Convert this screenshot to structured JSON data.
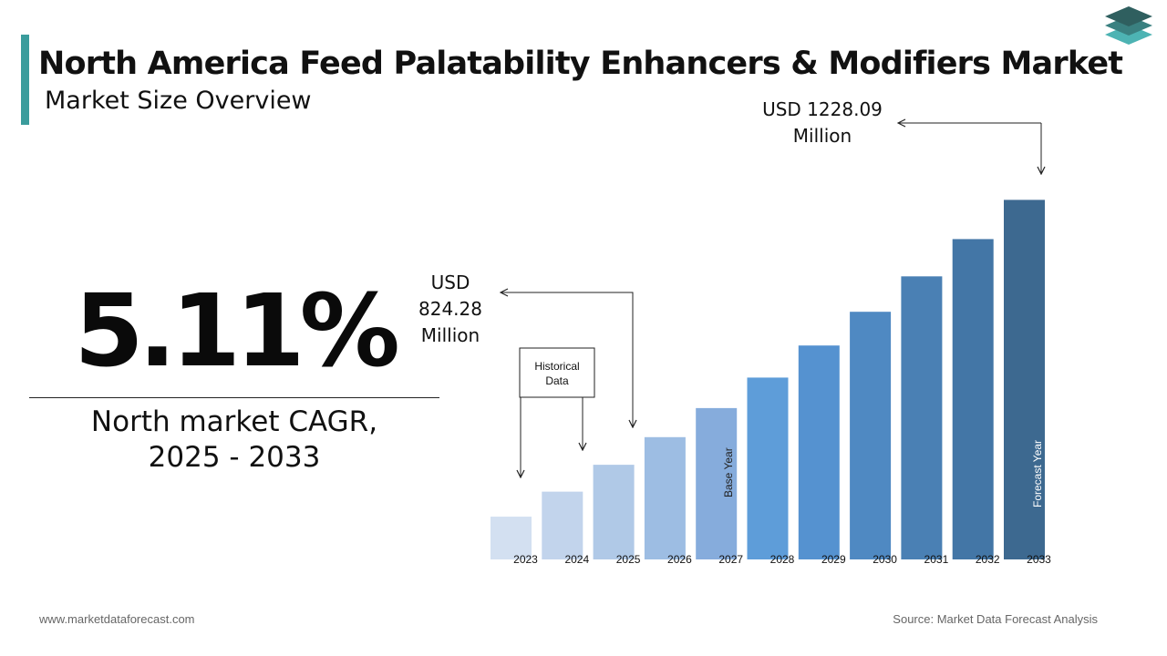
{
  "header": {
    "title": "North America Feed Palatability Enhancers & Modifiers Market",
    "subtitle": "Market Size Overview"
  },
  "kpi": {
    "cagr_value": "5.11%",
    "cagr_label_line1": "North market CAGR,",
    "cagr_label_line2": "2025 - 2033"
  },
  "chart_data": {
    "type": "bar",
    "title": "",
    "xlabel": "",
    "ylabel": "",
    "categories": [
      "2023",
      "2024",
      "2025",
      "2026",
      "2027",
      "2028",
      "2029",
      "2030",
      "2031",
      "2032",
      "2033"
    ],
    "values": [
      745.2,
      783.3,
      824.28,
      866.4,
      910.7,
      957.2,
      1006.1,
      1057.5,
      1111.5,
      1168.3,
      1228.09
    ],
    "ylim": [
      680,
      1230
    ],
    "colors": [
      "#d3e0f1",
      "#c2d4ec",
      "#b0c9e7",
      "#9dbde3",
      "#86acdc",
      "#5e9dd9",
      "#5592d0",
      "#4f89c2",
      "#4a80b4",
      "#4376a6",
      "#3d6990"
    ],
    "annotations": {
      "start_value_lines": [
        "USD",
        "824.28",
        "Million"
      ],
      "end_value_lines": [
        "USD 1228.09",
        "Million"
      ],
      "historical_label_lines": [
        "Historical",
        "Data"
      ],
      "base_year_label": "Base Year",
      "forecast_year_label": "Forecast Year"
    }
  },
  "footer": {
    "website": "www.marketdataforecast.com",
    "source": "Source: Market Data Forecast Analysis"
  }
}
